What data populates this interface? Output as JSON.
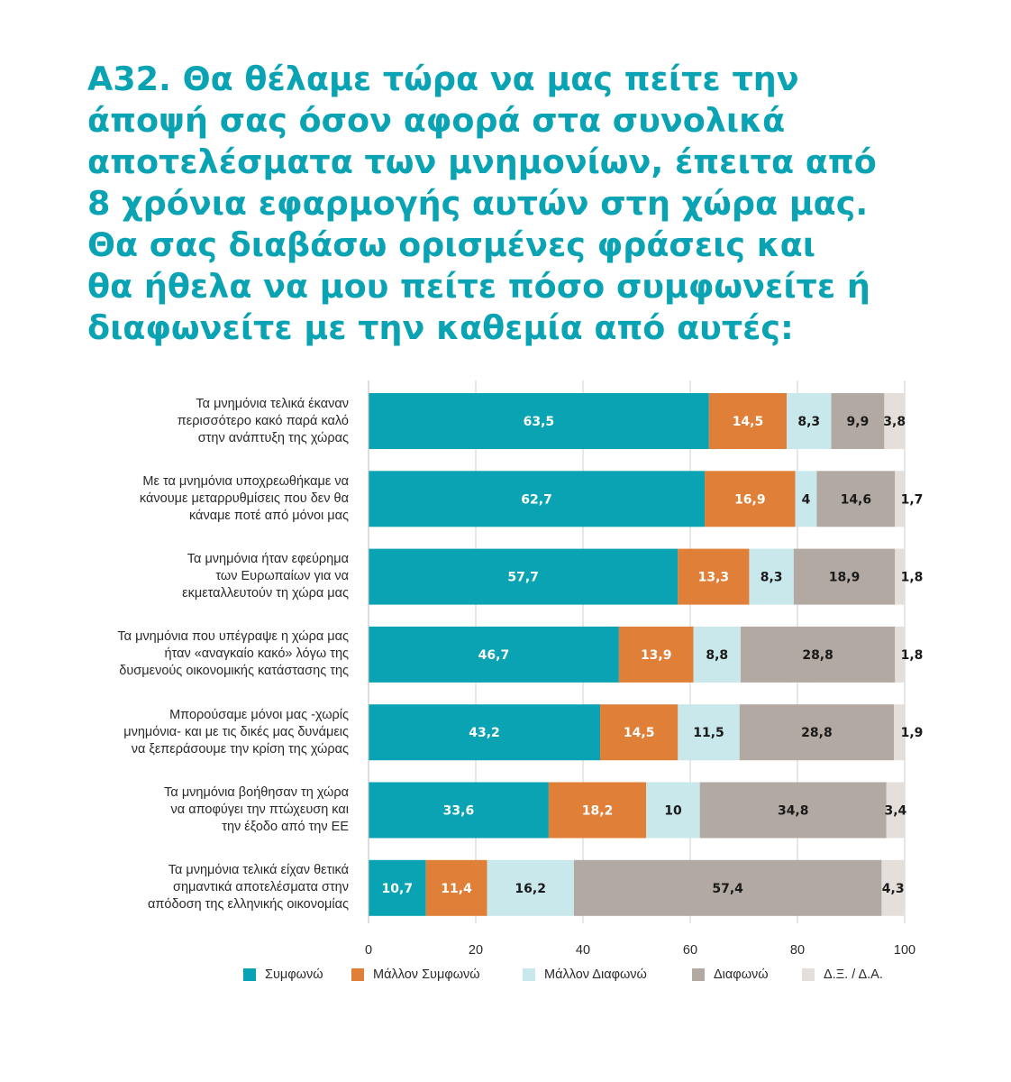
{
  "title_lines": [
    "Α32. Θα θέλαμε τώρα να μας πείτε την",
    "άποψή σας όσον αφορά στα συνολικά",
    "αποτελέσματα των μνημονίων, έπειτα από",
    "8 χρόνια εφαρμογής αυτών στη χώρα μας.",
    "Θα σας διαβάσω ορισμένες φράσεις και",
    "θα ήθελα να μου πείτε πόσο συμφωνείτε ή",
    "διαφωνείτε με την καθεμία από αυτές:"
  ],
  "colors": {
    "title": "#0aa3b3",
    "Συμφωνώ": "#0aa3b3",
    "Μάλλον Συμφωνώ": "#e07f38",
    "Μάλλον Διαφωνώ": "#c9e8ec",
    "Διαφωνώ": "#b2aaa2",
    "Δ.Ξ. / Δ.Α.": "#e4dfdb"
  },
  "chart_data": {
    "type": "bar",
    "orientation": "horizontal",
    "stacked": true,
    "categories": [
      [
        "Τα μνημόνια τελικά έκαναν",
        "περισσότερο κακό παρά καλό",
        "στην ανάπτυξη της χώρας"
      ],
      [
        "Με τα μνημόνια υποχρεωθήκαμε να",
        "κάνουμε μεταρρυθμίσεις που δεν θα",
        "κάναμε ποτέ από μόνοι μας"
      ],
      [
        "Τα μνημόνια ήταν εφεύρημα",
        "των Ευρωπαίων για να",
        "εκμεταλλευτούν τη χώρα μας"
      ],
      [
        "Τα μνημόνια που υπέγραψε η χώρα μας",
        "ήταν «αναγκαίο κακό» λόγω της",
        "δυσμενούς οικονομικής κατάστασης της"
      ],
      [
        "Μπορούσαμε μόνοι μας -χωρίς",
        "μνημόνια- και με τις δικές μας δυνάμεις",
        "να ξεπεράσουμε την κρίση της χώρας"
      ],
      [
        "Τα μνημόνια βοήθησαν τη χώρα",
        "να αποφύγει την πτώχευση και",
        "την έξοδο από την ΕΕ"
      ],
      [
        "Τα μνημόνια τελικά είχαν θετικά",
        "σημαντικά αποτελέσματα στην",
        "απόδοση της ελληνικής οικονομίας"
      ]
    ],
    "series": [
      {
        "name": "Συμφωνώ",
        "values": [
          63.5,
          62.7,
          57.7,
          46.7,
          43.2,
          33.6,
          10.7
        ],
        "labels": [
          "63,5",
          "62,7",
          "57,7",
          "46,7",
          "43,2",
          "33,6",
          "10,7"
        ]
      },
      {
        "name": "Μάλλον Συμφωνώ",
        "values": [
          14.5,
          16.9,
          13.3,
          13.9,
          14.5,
          18.2,
          11.4
        ],
        "labels": [
          "14,5",
          "16,9",
          "13,3",
          "13,9",
          "14,5",
          "18,2",
          "11,4"
        ]
      },
      {
        "name": "Μάλλον Διαφωνώ",
        "values": [
          8.3,
          4,
          8.3,
          8.8,
          11.5,
          10,
          16.2
        ],
        "labels": [
          "8,3",
          "4",
          "8,3",
          "8,8",
          "11,5",
          "10",
          "16,2"
        ]
      },
      {
        "name": "Διαφωνώ",
        "values": [
          9.9,
          14.6,
          18.9,
          28.8,
          28.8,
          34.8,
          57.4
        ],
        "labels": [
          "9,9",
          "14,6",
          "18,9",
          "28,8",
          "28,8",
          "34,8",
          "57,4"
        ]
      },
      {
        "name": "Δ.Ξ. / Δ.Α.",
        "values": [
          3.8,
          1.7,
          1.8,
          1.8,
          1.9,
          3.4,
          4.3
        ],
        "labels": [
          "3,8",
          "1,7",
          "1,8",
          "1,8",
          "1,9",
          "3,4",
          "4,3"
        ]
      }
    ],
    "xlim": [
      0,
      100
    ],
    "xticks": [
      0,
      20,
      40,
      60,
      80,
      100
    ],
    "grid": true,
    "legend_position": "bottom"
  }
}
